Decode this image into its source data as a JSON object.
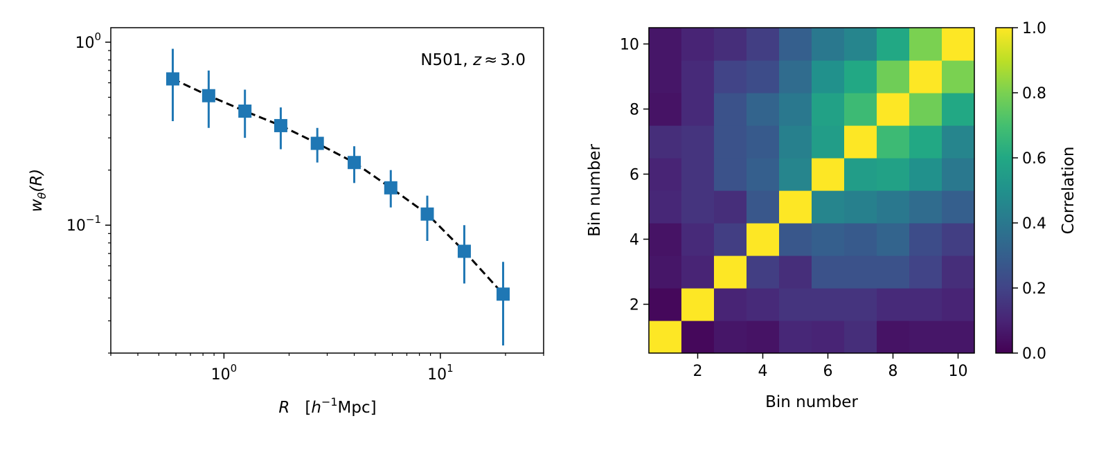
{
  "chart_data": [
    {
      "type": "line",
      "subtype": "errorbar-loglog",
      "annotation": {
        "prefix": "N501, ",
        "var": "z",
        "rel": "≈",
        "value": "3.0"
      },
      "xlabel": {
        "var": "R",
        "unit_open": "[",
        "h": "h",
        "exp": "−1",
        "unit": "Mpc",
        "unit_close": "]"
      },
      "ylabel": {
        "w": "w",
        "sub": "θ",
        "arg": "(R)"
      },
      "xscale": "log",
      "yscale": "log",
      "xlim": [
        0.3,
        30
      ],
      "ylim": [
        0.02,
        1.2
      ],
      "xticks": [
        {
          "value": 1,
          "base": "10",
          "exp": "0"
        },
        {
          "value": 10,
          "base": "10",
          "exp": "1"
        }
      ],
      "yticks": [
        {
          "value": 1,
          "base": "10",
          "exp": "0"
        },
        {
          "value": 0.1,
          "base": "10",
          "exp": "−1"
        }
      ],
      "series": [
        {
          "name": "w_theta",
          "color": "#1f77b4",
          "marker": "square",
          "x": [
            0.58,
            0.85,
            1.25,
            1.83,
            2.7,
            4.0,
            5.9,
            8.7,
            12.9,
            19.5
          ],
          "y": [
            0.63,
            0.51,
            0.42,
            0.35,
            0.28,
            0.22,
            0.16,
            0.115,
            0.072,
            0.042
          ],
          "yerr_low": [
            0.37,
            0.34,
            0.3,
            0.26,
            0.22,
            0.17,
            0.125,
            0.082,
            0.048,
            0.022
          ],
          "yerr_high": [
            0.92,
            0.7,
            0.55,
            0.44,
            0.34,
            0.27,
            0.2,
            0.145,
            0.1,
            0.063
          ]
        },
        {
          "name": "model",
          "color": "#000000",
          "style": "dashed",
          "x": [
            0.58,
            0.85,
            1.25,
            1.83,
            2.7,
            4.0,
            5.9,
            8.7,
            12.9,
            19.5
          ],
          "y": [
            0.63,
            0.51,
            0.42,
            0.35,
            0.28,
            0.22,
            0.16,
            0.115,
            0.072,
            0.042
          ]
        }
      ]
    },
    {
      "type": "heatmap",
      "xlabel": "Bin number",
      "ylabel": "Bin number",
      "colorbar_label": "Correlation",
      "colormap": "viridis",
      "vmin": 0.0,
      "vmax": 1.0,
      "xticks": [
        "2",
        "4",
        "6",
        "8",
        "10"
      ],
      "yticks": [
        "2",
        "4",
        "6",
        "8",
        "10"
      ],
      "colorbar_ticks": [
        "0.0",
        "0.2",
        "0.4",
        "0.6",
        "0.8",
        "1.0"
      ],
      "matrix": [
        [
          1.0,
          0.02,
          0.06,
          0.05,
          0.11,
          0.1,
          0.13,
          0.05,
          0.06,
          0.06
        ],
        [
          0.02,
          1.0,
          0.1,
          0.12,
          0.15,
          0.15,
          0.15,
          0.12,
          0.12,
          0.1
        ],
        [
          0.06,
          0.1,
          1.0,
          0.18,
          0.13,
          0.25,
          0.25,
          0.25,
          0.2,
          0.13
        ],
        [
          0.05,
          0.12,
          0.18,
          1.0,
          0.27,
          0.3,
          0.28,
          0.32,
          0.23,
          0.18
        ],
        [
          0.11,
          0.15,
          0.13,
          0.27,
          1.0,
          0.45,
          0.43,
          0.4,
          0.35,
          0.3
        ],
        [
          0.1,
          0.15,
          0.25,
          0.3,
          0.45,
          1.0,
          0.55,
          0.57,
          0.5,
          0.4
        ],
        [
          0.13,
          0.15,
          0.25,
          0.28,
          0.43,
          0.55,
          1.0,
          0.68,
          0.6,
          0.45
        ],
        [
          0.05,
          0.12,
          0.25,
          0.32,
          0.4,
          0.57,
          0.68,
          1.0,
          0.78,
          0.6
        ],
        [
          0.06,
          0.12,
          0.2,
          0.23,
          0.35,
          0.5,
          0.6,
          0.78,
          1.0,
          0.8
        ],
        [
          0.06,
          0.1,
          0.13,
          0.18,
          0.3,
          0.4,
          0.45,
          0.6,
          0.8,
          1.0
        ]
      ]
    }
  ]
}
